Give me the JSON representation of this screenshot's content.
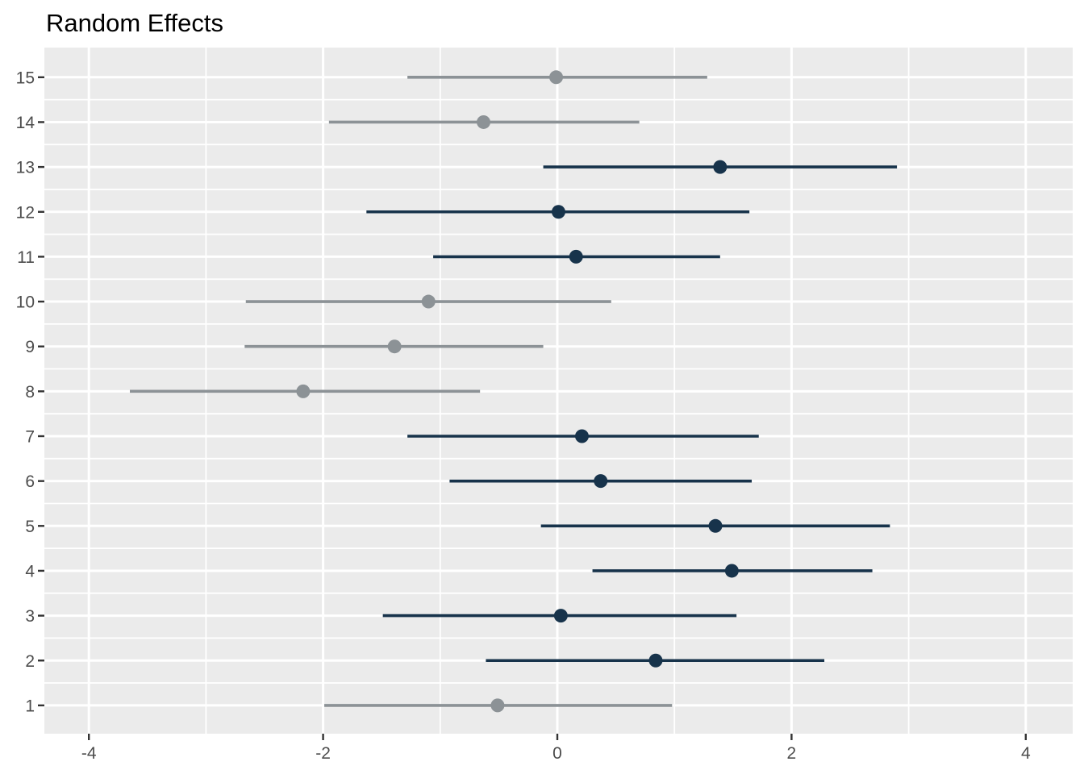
{
  "title": "Random Effects",
  "colors": {
    "page_bg": "#FFFFFF",
    "panel_bg": "#EBEBEB",
    "grid": "#FFFFFF",
    "tick_mark": "#333333",
    "axis_text": "#4D4D4D",
    "title_text": "#000000",
    "positive": "#17334B",
    "negative": "#8C9296"
  },
  "chart_data": {
    "type": "scatter",
    "variant": "pointrange-forest-plot",
    "title": "Random Effects",
    "xlabel": "",
    "ylabel": "",
    "grid": "on",
    "legend": "none",
    "x_axis": {
      "tick_labels": [
        "-4",
        "-2",
        "0",
        "2",
        "4"
      ],
      "tick_values": [
        -4,
        -2,
        0,
        2,
        4
      ],
      "minor_values": [
        -3,
        -1,
        1,
        3
      ],
      "range": [
        -4.39,
        4.41
      ]
    },
    "y_axis": {
      "tick_labels": [
        "1",
        "2",
        "3",
        "4",
        "5",
        "6",
        "7",
        "8",
        "9",
        "10",
        "11",
        "12",
        "13",
        "14",
        "15"
      ],
      "tick_values": [
        1,
        2,
        3,
        4,
        5,
        6,
        7,
        8,
        9,
        10,
        11,
        12,
        13,
        14,
        15
      ],
      "minor_values": [
        1.5,
        2.5,
        3.5,
        4.5,
        5.5,
        6.5,
        7.5,
        8.5,
        9.5,
        10.5,
        11.5,
        12.5,
        13.5,
        14.5
      ],
      "range": [
        0.34,
        15.66
      ]
    },
    "series": [
      {
        "label": "1",
        "estimate": -0.51,
        "ci_low": -1.99,
        "ci_high": 0.98,
        "group": "negative"
      },
      {
        "label": "2",
        "estimate": 0.84,
        "ci_low": -0.61,
        "ci_high": 2.28,
        "group": "positive"
      },
      {
        "label": "3",
        "estimate": 0.03,
        "ci_low": -1.49,
        "ci_high": 1.53,
        "group": "positive"
      },
      {
        "label": "4",
        "estimate": 1.49,
        "ci_low": 0.3,
        "ci_high": 2.69,
        "group": "positive"
      },
      {
        "label": "5",
        "estimate": 1.35,
        "ci_low": -0.14,
        "ci_high": 2.84,
        "group": "positive"
      },
      {
        "label": "6",
        "estimate": 0.37,
        "ci_low": -0.92,
        "ci_high": 1.66,
        "group": "positive"
      },
      {
        "label": "7",
        "estimate": 0.21,
        "ci_low": -1.28,
        "ci_high": 1.72,
        "group": "positive"
      },
      {
        "label": "8",
        "estimate": -2.17,
        "ci_low": -3.65,
        "ci_high": -0.66,
        "group": "negative"
      },
      {
        "label": "9",
        "estimate": -1.39,
        "ci_low": -2.67,
        "ci_high": -0.12,
        "group": "negative"
      },
      {
        "label": "10",
        "estimate": -1.1,
        "ci_low": -2.66,
        "ci_high": 0.46,
        "group": "negative"
      },
      {
        "label": "11",
        "estimate": 0.16,
        "ci_low": -1.06,
        "ci_high": 1.39,
        "group": "positive"
      },
      {
        "label": "12",
        "estimate": 0.01,
        "ci_low": -1.63,
        "ci_high": 1.64,
        "group": "positive"
      },
      {
        "label": "13",
        "estimate": 1.39,
        "ci_low": -0.12,
        "ci_high": 2.9,
        "group": "positive"
      },
      {
        "label": "14",
        "estimate": -0.63,
        "ci_low": -1.95,
        "ci_high": 0.7,
        "group": "negative"
      },
      {
        "label": "15",
        "estimate": -0.01,
        "ci_low": -1.28,
        "ci_high": 1.28,
        "group": "negative"
      }
    ]
  }
}
